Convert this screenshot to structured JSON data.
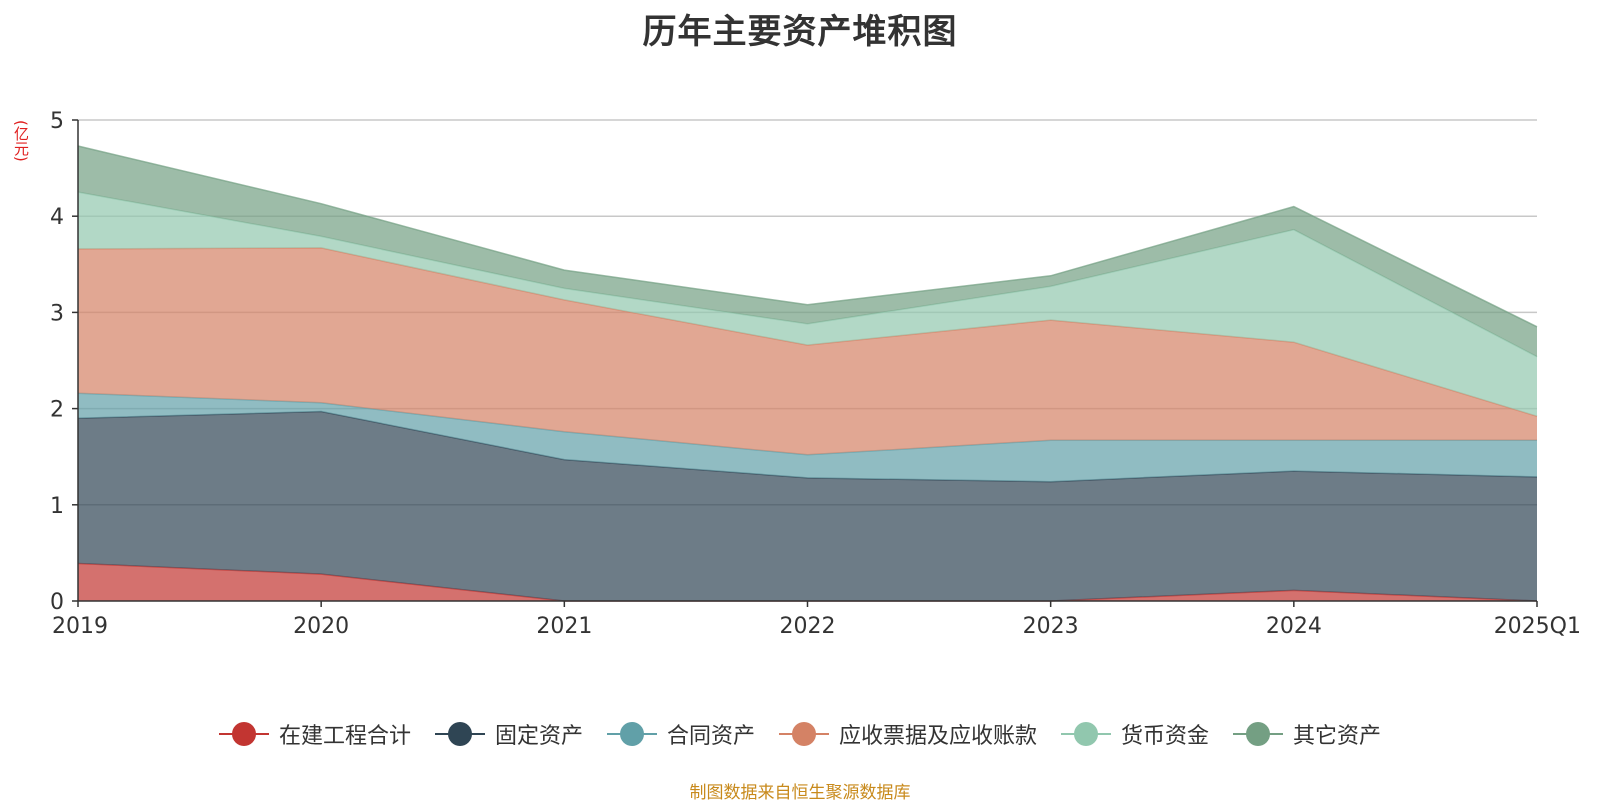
{
  "title": "历年主要资产堆积图",
  "y_unit": "(亿元)",
  "source_note": "制图数据来自恒生聚源数据库",
  "chart_data": {
    "type": "area",
    "stacked": true,
    "categories": [
      "2019",
      "2020",
      "2021",
      "2022",
      "2023",
      "2024",
      "2025Q1"
    ],
    "ylim": [
      0,
      5
    ],
    "yticks": [
      0,
      1,
      2,
      3,
      4,
      5
    ],
    "grid": true,
    "legend_position": "bottom",
    "series": [
      {
        "name": "在建工程合计",
        "color": "#c23531",
        "values": [
          0.39,
          0.28,
          0.0,
          0.0,
          0.0,
          0.11,
          0.0
        ]
      },
      {
        "name": "固定资产",
        "color": "#2f4554",
        "values": [
          1.51,
          1.69,
          1.47,
          1.28,
          1.24,
          1.24,
          1.29
        ]
      },
      {
        "name": "合同资产",
        "color": "#61a0a8",
        "values": [
          0.26,
          0.09,
          0.29,
          0.24,
          0.43,
          0.32,
          0.38
        ]
      },
      {
        "name": "应收票据及应收账款",
        "color": "#d48265",
        "values": [
          1.5,
          1.61,
          1.37,
          1.14,
          1.25,
          1.02,
          0.25
        ]
      },
      {
        "name": "货币资金",
        "color": "#91c7ae",
        "values": [
          0.59,
          0.12,
          0.12,
          0.22,
          0.35,
          1.17,
          0.62
        ]
      },
      {
        "name": "其它资产",
        "color": "#749f83",
        "values": [
          0.48,
          0.34,
          0.19,
          0.2,
          0.11,
          0.24,
          0.31
        ]
      }
    ]
  }
}
